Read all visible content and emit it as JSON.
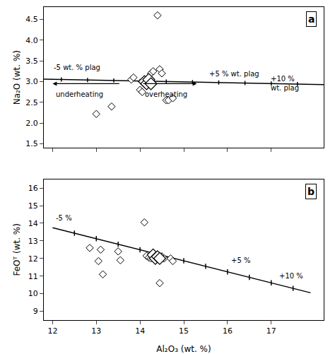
{
  "chart_data": [
    {
      "type": "scatter",
      "panel_label": "a",
      "ylabel": "Na₂O (wt. %)",
      "xlim": [
        11.8,
        18.2
      ],
      "xticks": [
        12,
        13,
        14,
        15,
        16,
        17
      ],
      "ylim": [
        1.4,
        4.8
      ],
      "yticks": [
        1.5,
        {
          "value": 2.0,
          "label": "2.0"
        },
        2.5,
        {
          "value": 3.0,
          "label": "3.0"
        },
        3.5,
        {
          "value": 4.0,
          "label": "4.0"
        },
        4.5
      ],
      "grid": false,
      "tick_labels": "y",
      "series": [
        {
          "type": "line",
          "color": "black",
          "x": [
            11.8,
            18.2
          ],
          "values": [
            3.06,
            2.93
          ]
        },
        {
          "type": "errorbar",
          "color": "black",
          "x": [
            12.2,
            12.8,
            13.4,
            14.0,
            14.6,
            15.2,
            15.8,
            16.4,
            17.0,
            17.6
          ],
          "values": [
            3.051875,
            3.0396875,
            3.0275,
            3.0153125,
            3.003125,
            2.9909375,
            2.97875,
            2.9665625,
            2.954375,
            2.9421875
          ],
          "error": [
            0.05,
            0.05,
            0.05,
            0.05,
            0.05,
            0.05,
            0.05,
            0.05,
            0.05,
            0.05
          ]
        },
        {
          "type": "scatter",
          "marker": "small_diamond",
          "color": "white",
          "x": [
            13.0,
            13.35,
            13.8,
            13.85,
            14.0,
            14.05,
            14.25,
            14.3,
            14.4,
            14.45,
            14.5,
            14.6,
            14.65,
            14.75
          ],
          "values": [
            2.22,
            2.4,
            3.05,
            3.1,
            2.8,
            2.75,
            3.2,
            3.25,
            4.6,
            3.3,
            3.2,
            2.55,
            2.55,
            2.6
          ]
        },
        {
          "type": "scatter",
          "marker": "large_diamond",
          "color": "white",
          "x": [
            14.1,
            14.15,
            14.2,
            14.25
          ],
          "values": [
            3.0,
            2.95,
            3.05,
            2.95
          ]
        }
      ],
      "annotations": [
        {
          "text": "-5 wt. % plag",
          "x": 12.0,
          "y": 3.22
        },
        {
          "text": "+5 % wt. plag",
          "x": 15.55,
          "y": 3.06
        },
        {
          "text": "+10 %\nwt. plag",
          "x": 16.95,
          "y": 2.96
        }
      ],
      "arrows": [
        {
          "from": 13.55,
          "to": 12.0,
          "y": 2.95,
          "text": "underheating",
          "text_x": 12.05,
          "text_y": 2.83
        },
        {
          "from": 14.05,
          "to": 15.3,
          "y": 2.95,
          "text": "overheating",
          "text_x": 14.08,
          "text_y": 2.83
        }
      ]
    },
    {
      "type": "scatter",
      "panel_label": "b",
      "xlabel": "Al₂O₃ (wt. %)",
      "ylabel": "FeOᵀ (wt. %)",
      "xlim": [
        11.8,
        18.2
      ],
      "xticks": [
        12,
        13,
        14,
        15,
        16,
        17
      ],
      "ylim": [
        8.5,
        16.5
      ],
      "yticks": [
        9,
        10,
        11,
        12,
        13,
        14,
        15,
        16
      ],
      "grid": false,
      "tick_labels": true,
      "series": [
        {
          "type": "line",
          "color": "black",
          "x": [
            12.0,
            17.9
          ],
          "values": [
            13.75,
            10.05
          ]
        },
        {
          "type": "errorbar",
          "color": "black",
          "x": [
            12.5,
            13.0,
            13.5,
            14.0,
            14.5,
            15.0,
            15.5,
            16.0,
            16.5,
            17.0,
            17.5
          ],
          "values": [
            13.436441,
            13.122881,
            12.809322,
            12.495763,
            12.182203,
            11.868644,
            11.555085,
            11.241525,
            10.927966,
            10.614407,
            10.300847
          ],
          "error": [
            0.15,
            0.15,
            0.15,
            0.15,
            0.15,
            0.15,
            0.15,
            0.15,
            0.15,
            0.15,
            0.15
          ]
        },
        {
          "type": "scatter",
          "marker": "small_diamond",
          "color": "white",
          "x": [
            12.85,
            13.05,
            13.1,
            13.15,
            13.5,
            13.55,
            14.1,
            14.15,
            14.2,
            14.25,
            14.3,
            14.35,
            14.45,
            14.5,
            14.55,
            14.7,
            14.75
          ],
          "values": [
            12.6,
            11.85,
            12.5,
            11.1,
            12.4,
            11.9,
            14.05,
            12.15,
            12.05,
            12.0,
            12.2,
            12.1,
            10.6,
            12.1,
            12.0,
            12.0,
            11.85
          ]
        },
        {
          "type": "scatter",
          "marker": "large_diamond",
          "color": "white",
          "x": [
            14.3,
            14.35,
            14.4,
            14.45
          ],
          "values": [
            12.2,
            12.0,
            12.1,
            12.0
          ]
        }
      ],
      "annotations": [
        {
          "text": "-5 %",
          "x": 12.05,
          "y": 14.0
        },
        {
          "text": "+5 %",
          "x": 16.05,
          "y": 11.6
        },
        {
          "text": "+10 %",
          "x": 17.15,
          "y": 10.7
        }
      ]
    }
  ]
}
